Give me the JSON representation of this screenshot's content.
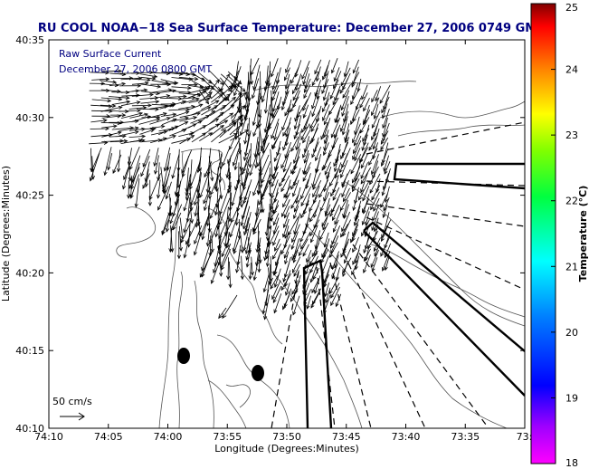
{
  "title": "RU COOL  NOAA−18  Sea Surface Temperature:  December 27, 2006 0749 GMT",
  "overlay": {
    "line1": "Raw Surface Current",
    "line2": "December 27, 2006 0800 GMT"
  },
  "axes": {
    "xlabel": "Longitude (Degrees:Minutes)",
    "ylabel": "Latitude (Degrees:Minutes)",
    "x_ticks": [
      "74:10",
      "74:05",
      "74:00",
      "73:55",
      "73:50",
      "73:45",
      "73:40",
      "73:35",
      "73:3"
    ],
    "y_ticks": [
      "40:35",
      "40:30",
      "40:25",
      "40:20",
      "40:15",
      "40:10"
    ]
  },
  "colorbar": {
    "label": "Temperature (°C)",
    "ticks": [
      "25",
      "24",
      "23",
      "22",
      "21",
      "20",
      "19",
      "18"
    ],
    "range": [
      18,
      25
    ],
    "colors": [
      "#ff00ff",
      "#0000ff",
      "#00ffff",
      "#00ff00",
      "#ffff00",
      "#ff8000",
      "#ff0000",
      "#800000"
    ]
  },
  "scale_legend": {
    "label": "50 cm/s"
  }
}
